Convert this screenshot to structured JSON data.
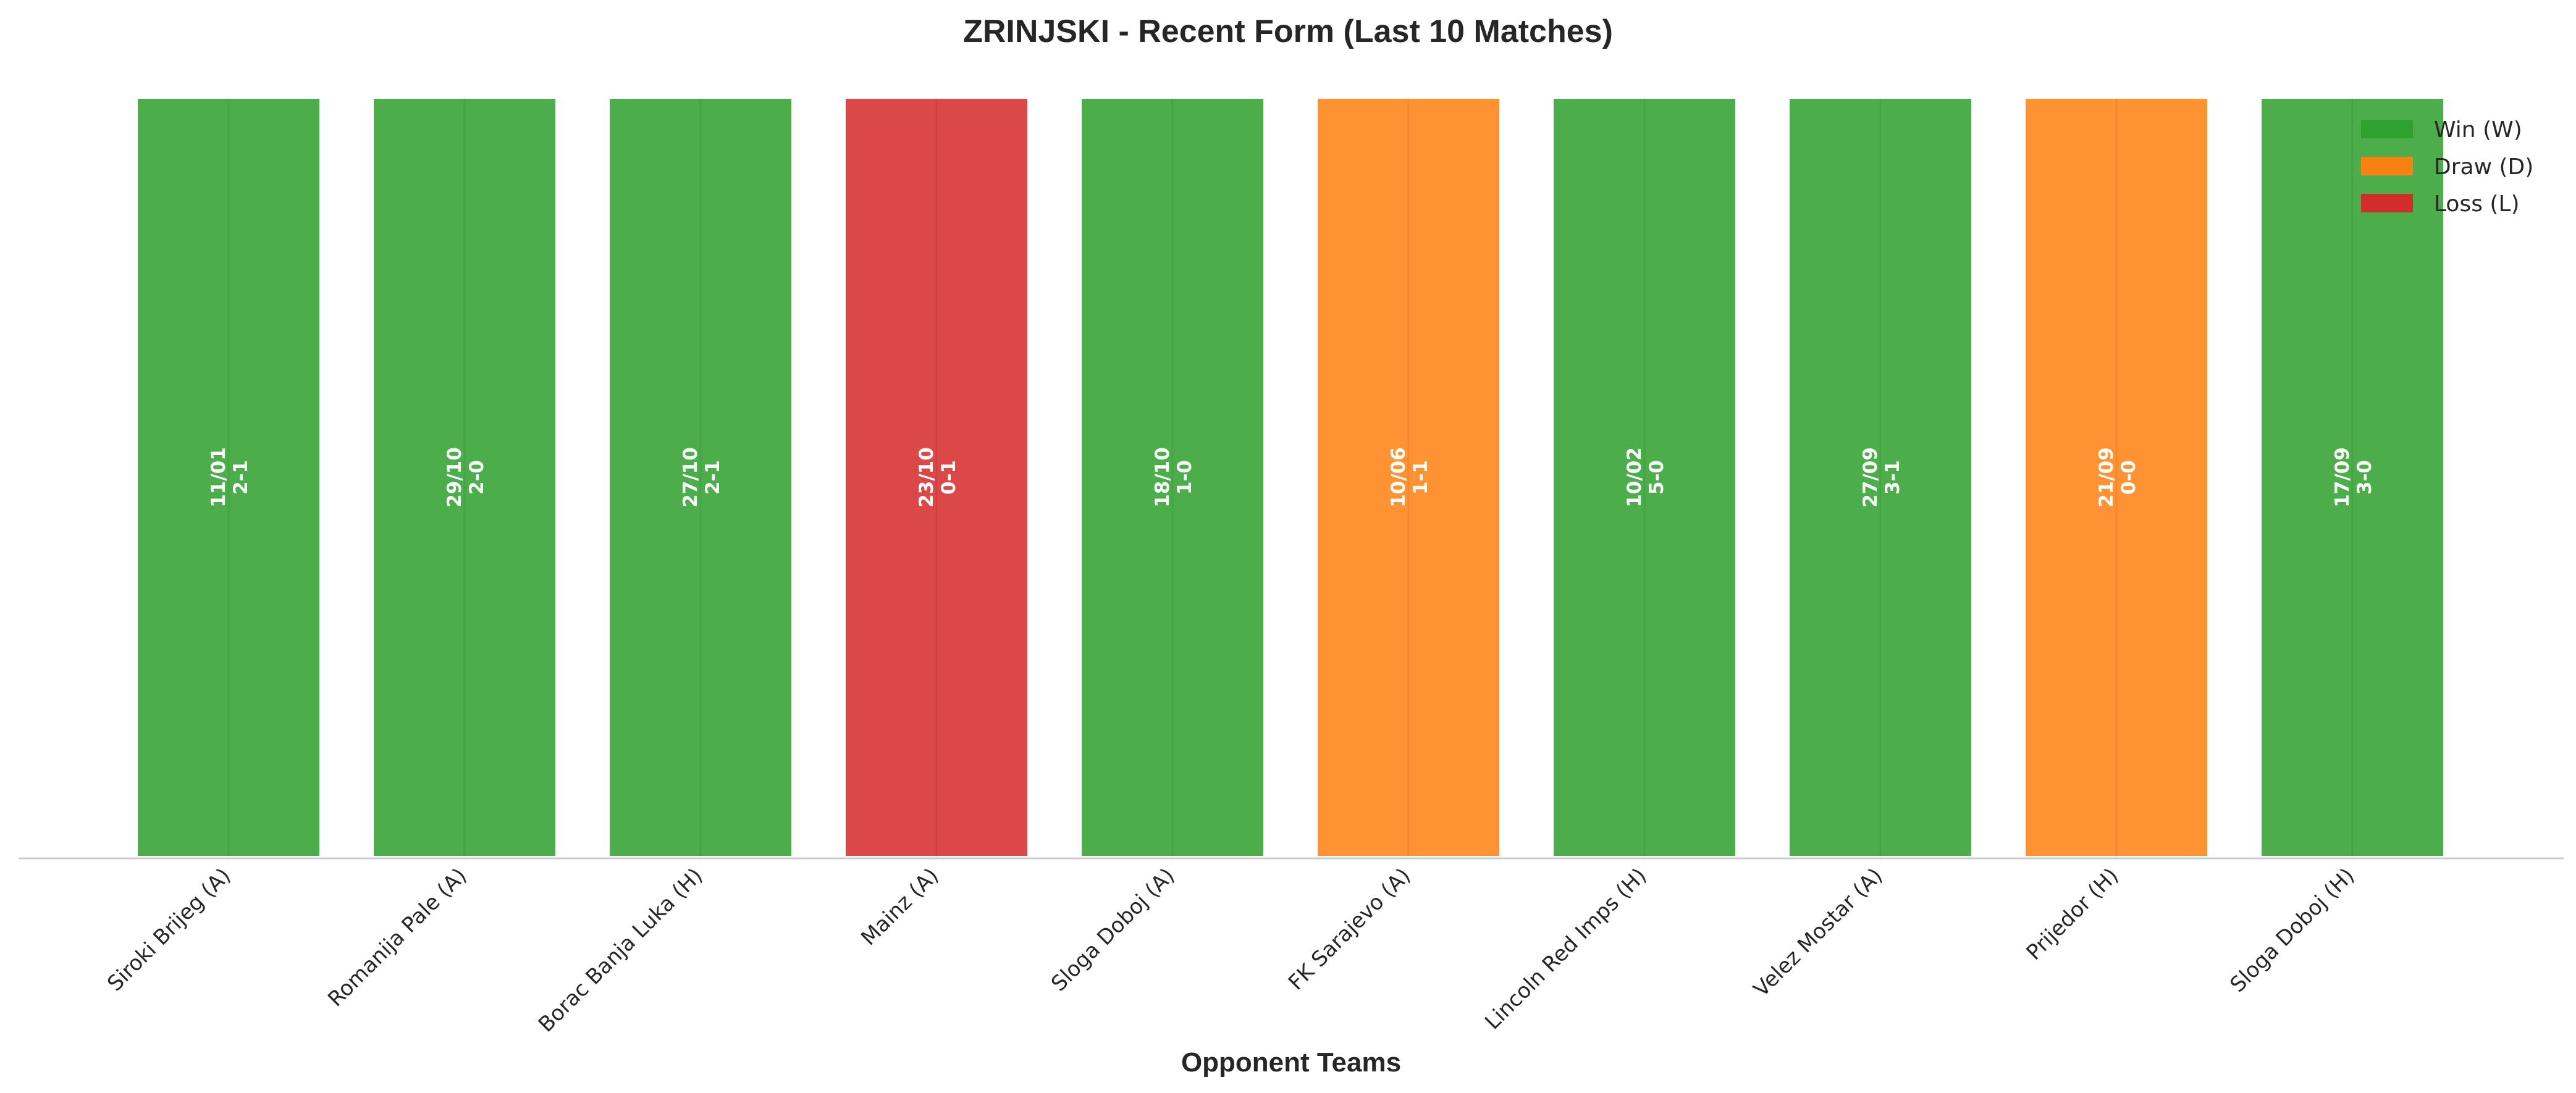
{
  "chart_data": {
    "type": "bar",
    "title": "ZRINJSKI - Recent Form (Last 10 Matches)",
    "xlabel": "Opponent Teams",
    "ylabel": "",
    "grid": false,
    "legend_position": "top-right",
    "categories": [
      "Siroki Brijeg (A)",
      "Romanija Pale (A)",
      "Borac Banja Luka (H)",
      "Mainz (A)",
      "Sloga Doboj (A)",
      "FK Sarajevo (A)",
      "Lincoln Red Imps (H)",
      "Velez Mostar (A)",
      "Prijedor (H)",
      "Sloga Doboj (H)"
    ],
    "values": [
      1,
      1,
      1,
      1,
      1,
      1,
      1,
      1,
      1,
      1
    ],
    "results": [
      "W",
      "W",
      "W",
      "L",
      "W",
      "D",
      "W",
      "W",
      "D",
      "W"
    ],
    "bar_labels": [
      [
        "11/01",
        "2-1"
      ],
      [
        "29/10",
        "2-0"
      ],
      [
        "27/10",
        "2-1"
      ],
      [
        "23/10",
        "0-1"
      ],
      [
        "18/10",
        "1-0"
      ],
      [
        "10/06",
        "1-1"
      ],
      [
        "10/02",
        "5-0"
      ],
      [
        "27/09",
        "3-1"
      ],
      [
        "21/09",
        "0-0"
      ],
      [
        "17/09",
        "3-0"
      ]
    ],
    "legend": [
      {
        "key": "W",
        "label": "Win (W)",
        "color": "#2ca02c"
      },
      {
        "key": "D",
        "label": "Draw (D)",
        "color": "#ff7f0e"
      },
      {
        "key": "L",
        "label": "Loss (L)",
        "color": "#d62728"
      }
    ],
    "ylim": [
      0,
      1
    ]
  }
}
